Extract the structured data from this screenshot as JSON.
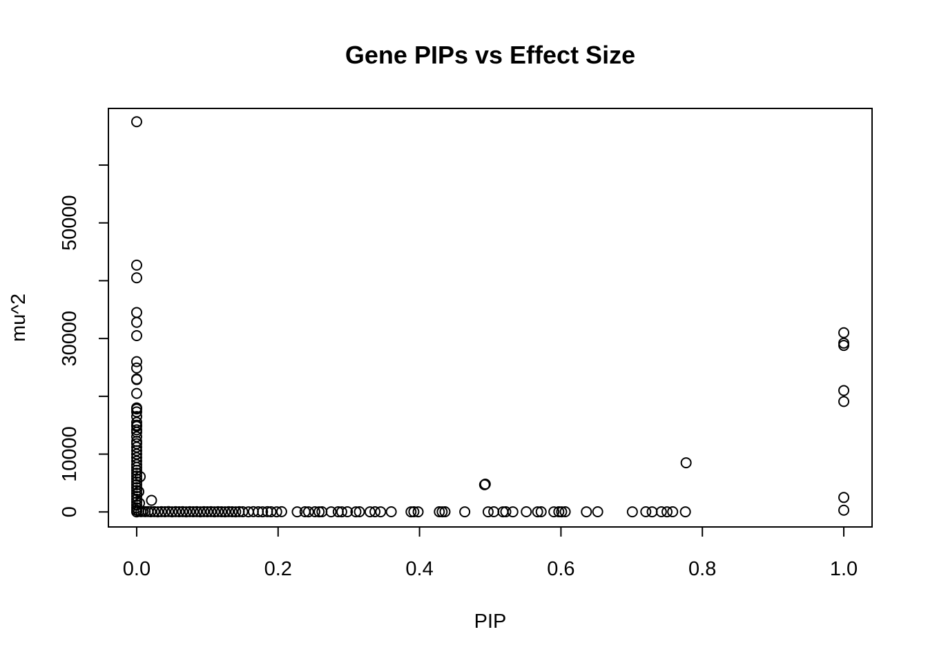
{
  "chart_data": {
    "type": "scatter",
    "title": "Gene PIPs vs Effect Size",
    "xlabel": "PIP",
    "ylabel": "mu^2",
    "xlim": [
      -0.04,
      1.04
    ],
    "ylim": [
      -2600,
      69800
    ],
    "xticks": [
      0.0,
      0.2,
      0.4,
      0.6,
      0.8,
      1.0
    ],
    "xtick_labels": [
      "0.0",
      "0.2",
      "0.4",
      "0.6",
      "0.8",
      "1.0"
    ],
    "yticks": [
      0,
      10000,
      20000,
      30000,
      40000,
      50000,
      60000
    ],
    "ytick_labels": [
      "0",
      "10000",
      "",
      "30000",
      "",
      "50000",
      ""
    ],
    "grid": false,
    "legend": "none",
    "marker": "open-circle",
    "points": [
      [
        0.0,
        67500
      ],
      [
        0.0,
        42700
      ],
      [
        0.0,
        40500
      ],
      [
        0.0,
        34500
      ],
      [
        0.0,
        32800
      ],
      [
        0.0,
        30500
      ],
      [
        0.0,
        26000
      ],
      [
        0.0,
        24900
      ],
      [
        0.0,
        23000
      ],
      [
        0.0,
        22900
      ],
      [
        0.0,
        20500
      ],
      [
        0.0,
        18000
      ],
      [
        0.0,
        17800
      ],
      [
        0.0,
        17300
      ],
      [
        0.0,
        16500
      ],
      [
        0.0,
        15500
      ],
      [
        0.0,
        15000
      ],
      [
        0.0,
        14800
      ],
      [
        0.0,
        14200
      ],
      [
        0.0,
        13800
      ],
      [
        0.0,
        13000
      ],
      [
        0.0,
        12200
      ],
      [
        0.0,
        11800
      ],
      [
        0.0,
        11200
      ],
      [
        0.0,
        10600
      ],
      [
        0.0,
        10000
      ],
      [
        0.0,
        9400
      ],
      [
        0.0,
        8800
      ],
      [
        0.0,
        8200
      ],
      [
        0.0,
        7700
      ],
      [
        0.0,
        7200
      ],
      [
        0.0,
        6700
      ],
      [
        0.0,
        6200
      ],
      [
        0.0,
        5700
      ],
      [
        0.0,
        5200
      ],
      [
        0.0,
        4700
      ],
      [
        0.0,
        4200
      ],
      [
        0.0,
        3700
      ],
      [
        0.0,
        3200
      ],
      [
        0.0,
        2700
      ],
      [
        0.0,
        2200
      ],
      [
        0.0,
        1700
      ],
      [
        0.0,
        1200
      ],
      [
        0.0,
        700
      ],
      [
        0.0,
        300
      ],
      [
        0.0,
        0
      ],
      [
        0.005,
        6100
      ],
      [
        0.003,
        3500
      ],
      [
        0.004,
        1500
      ],
      [
        0.021,
        2000
      ],
      [
        0.003,
        100
      ],
      [
        0.006,
        50
      ],
      [
        0.009,
        80
      ],
      [
        0.012,
        40
      ],
      [
        0.016,
        60
      ],
      [
        0.02,
        30
      ],
      [
        0.025,
        50
      ],
      [
        0.03,
        20
      ],
      [
        0.035,
        40
      ],
      [
        0.04,
        30
      ],
      [
        0.045,
        60
      ],
      [
        0.05,
        20
      ],
      [
        0.055,
        40
      ],
      [
        0.06,
        30
      ],
      [
        0.065,
        50
      ],
      [
        0.07,
        20
      ],
      [
        0.075,
        40
      ],
      [
        0.08,
        30
      ],
      [
        0.085,
        50
      ],
      [
        0.09,
        20
      ],
      [
        0.095,
        40
      ],
      [
        0.1,
        30
      ],
      [
        0.105,
        50
      ],
      [
        0.11,
        20
      ],
      [
        0.115,
        40
      ],
      [
        0.12,
        30
      ],
      [
        0.125,
        20
      ],
      [
        0.13,
        40
      ],
      [
        0.135,
        30
      ],
      [
        0.14,
        20
      ],
      [
        0.145,
        40
      ],
      [
        0.15,
        30
      ],
      [
        0.158,
        20
      ],
      [
        0.165,
        40
      ],
      [
        0.172,
        30
      ],
      [
        0.178,
        20
      ],
      [
        0.185,
        40
      ],
      [
        0.19,
        30
      ],
      [
        0.198,
        20
      ],
      [
        0.205,
        40
      ],
      [
        0.227,
        20
      ],
      [
        0.238,
        30
      ],
      [
        0.243,
        20
      ],
      [
        0.252,
        30
      ],
      [
        0.258,
        20
      ],
      [
        0.262,
        30
      ],
      [
        0.275,
        20
      ],
      [
        0.285,
        30
      ],
      [
        0.29,
        20
      ],
      [
        0.298,
        30
      ],
      [
        0.31,
        20
      ],
      [
        0.315,
        30
      ],
      [
        0.33,
        20
      ],
      [
        0.337,
        30
      ],
      [
        0.345,
        20
      ],
      [
        0.36,
        30
      ],
      [
        0.388,
        20
      ],
      [
        0.392,
        30
      ],
      [
        0.398,
        20
      ],
      [
        0.428,
        30
      ],
      [
        0.432,
        20
      ],
      [
        0.436,
        30
      ],
      [
        0.464,
        20
      ],
      [
        0.492,
        4700
      ],
      [
        0.493,
        4800
      ],
      [
        0.497,
        20
      ],
      [
        0.505,
        30
      ],
      [
        0.518,
        20
      ],
      [
        0.522,
        30
      ],
      [
        0.532,
        20
      ],
      [
        0.551,
        30
      ],
      [
        0.567,
        20
      ],
      [
        0.572,
        30
      ],
      [
        0.59,
        20
      ],
      [
        0.597,
        30
      ],
      [
        0.601,
        20
      ],
      [
        0.606,
        30
      ],
      [
        0.636,
        20
      ],
      [
        0.652,
        30
      ],
      [
        0.701,
        20
      ],
      [
        0.72,
        30
      ],
      [
        0.729,
        20
      ],
      [
        0.742,
        30
      ],
      [
        0.75,
        20
      ],
      [
        0.758,
        30
      ],
      [
        0.777,
        8500
      ],
      [
        0.776,
        20
      ],
      [
        1.0,
        31000
      ],
      [
        1.0,
        29200
      ],
      [
        1.0,
        28800
      ],
      [
        1.0,
        21000
      ],
      [
        1.0,
        19100
      ],
      [
        1.0,
        2500
      ],
      [
        1.0,
        300
      ]
    ]
  }
}
